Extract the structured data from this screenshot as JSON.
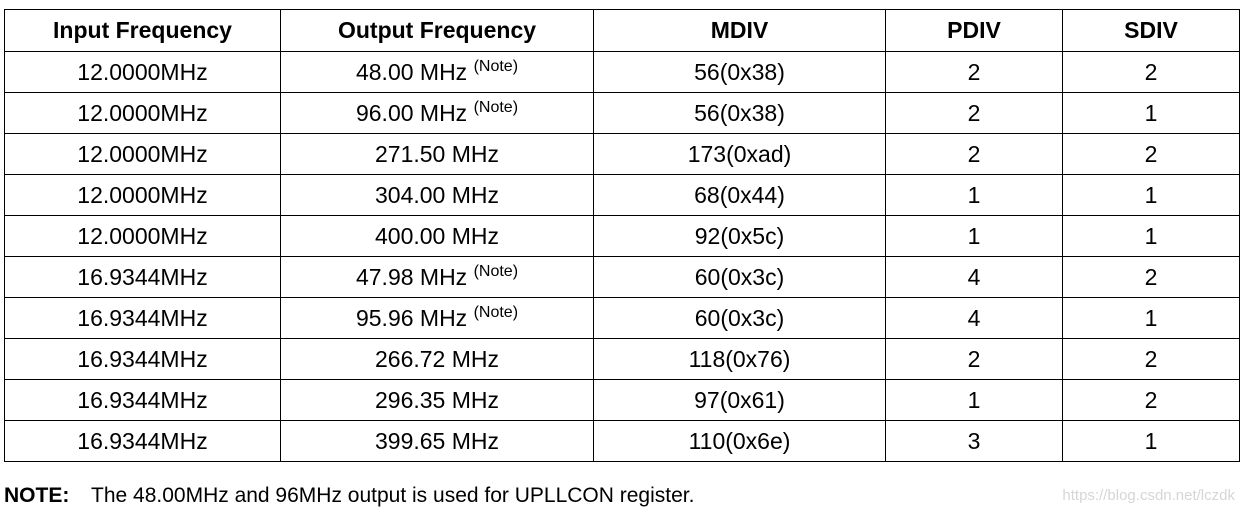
{
  "table": {
    "headers": [
      "Input Frequency",
      "Output Frequency",
      "MDIV",
      "PDIV",
      "SDIV"
    ],
    "rows": [
      {
        "input": "12.0000MHz",
        "output": "48.00 MHz",
        "note": "(Note)",
        "mdiv": "56(0x38)",
        "pdiv": "2",
        "sdiv": "2"
      },
      {
        "input": "12.0000MHz",
        "output": "96.00 MHz",
        "note": "(Note)",
        "mdiv": "56(0x38)",
        "pdiv": "2",
        "sdiv": "1"
      },
      {
        "input": "12.0000MHz",
        "output": "271.50 MHz",
        "note": "",
        "mdiv": "173(0xad)",
        "pdiv": "2",
        "sdiv": "2"
      },
      {
        "input": "12.0000MHz",
        "output": "304.00 MHz",
        "note": "",
        "mdiv": "68(0x44)",
        "pdiv": "1",
        "sdiv": "1"
      },
      {
        "input": "12.0000MHz",
        "output": "400.00 MHz",
        "note": "",
        "mdiv": "92(0x5c)",
        "pdiv": "1",
        "sdiv": "1"
      },
      {
        "input": "16.9344MHz",
        "output": "47.98 MHz",
        "note": "(Note)",
        "mdiv": "60(0x3c)",
        "pdiv": "4",
        "sdiv": "2"
      },
      {
        "input": "16.9344MHz",
        "output": "95.96 MHz",
        "note": "(Note)",
        "mdiv": "60(0x3c)",
        "pdiv": "4",
        "sdiv": "1"
      },
      {
        "input": "16.9344MHz",
        "output": "266.72 MHz",
        "note": "",
        "mdiv": "118(0x76)",
        "pdiv": "2",
        "sdiv": "2"
      },
      {
        "input": "16.9344MHz",
        "output": "296.35 MHz",
        "note": "",
        "mdiv": "97(0x61)",
        "pdiv": "1",
        "sdiv": "2"
      },
      {
        "input": "16.9344MHz",
        "output": "399.65 MHz",
        "note": "",
        "mdiv": "110(0x6e)",
        "pdiv": "3",
        "sdiv": "1"
      }
    ]
  },
  "footnote": {
    "label": "NOTE:",
    "text": "The 48.00MHz and 96MHz output is used for UPLLCON register."
  },
  "watermark": "https://blog.csdn.net/lczdk"
}
